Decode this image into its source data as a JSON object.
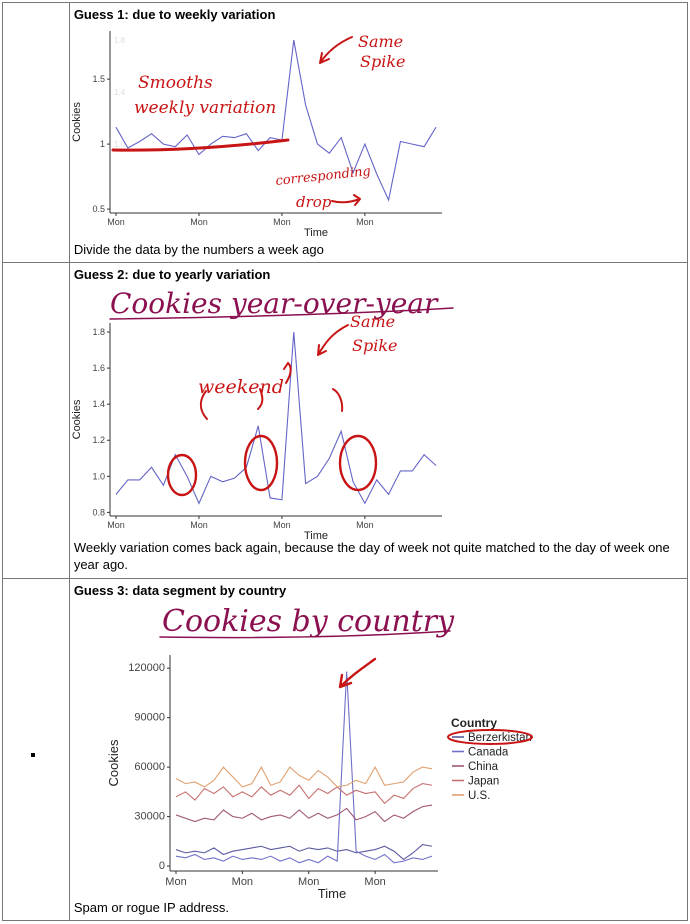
{
  "rows": [
    {
      "title": "Guess 1: due to weekly variation",
      "caption": "Divide the data by the numbers a week ago",
      "chart": {
        "type": "line",
        "xlabel": "Time",
        "ylabel": "Cookies",
        "x_ticks": [
          "Mon",
          "Mon",
          "Mon",
          "Mon"
        ],
        "y_ticks": [
          0.5,
          1.0,
          1.5
        ],
        "faded_y_ticks": [
          1.8,
          1.4,
          1.0
        ],
        "values": [
          1.13,
          0.97,
          1.02,
          1.08,
          1.0,
          0.98,
          1.07,
          0.92,
          1.0,
          1.06,
          1.05,
          1.08,
          0.95,
          1.05,
          1.03,
          1.8,
          1.3,
          1.0,
          0.93,
          1.05,
          0.78,
          1.0,
          0.77,
          0.57,
          1.02,
          1.0,
          0.98,
          1.13
        ],
        "ylim": [
          0.47,
          1.87
        ],
        "line_color": "#6464c8"
      },
      "annotations": {
        "smooths": "Smooths",
        "weekly_variation": "weekly variation",
        "same": "Same",
        "spike": "Spike",
        "corresponding": "corresponding",
        "drop": "drop"
      }
    },
    {
      "title": "Guess 2: due to yearly variation",
      "caption": "Weekly variation comes back again, because the day of week not quite matched to the day of week one year ago.",
      "heading": "Cookies year-over-year",
      "chart": {
        "type": "line",
        "xlabel": "Time",
        "ylabel": "Cookies",
        "x_ticks": [
          "Mon",
          "Mon",
          "Mon",
          "Mon"
        ],
        "y_ticks": [
          0.8,
          1.0,
          1.2,
          1.4,
          1.6,
          1.8
        ],
        "values": [
          0.9,
          0.98,
          0.98,
          1.05,
          0.95,
          1.12,
          1.0,
          0.85,
          1.0,
          0.97,
          0.99,
          1.05,
          1.28,
          0.88,
          0.87,
          1.8,
          0.96,
          1.0,
          1.1,
          1.25,
          0.97,
          0.85,
          0.98,
          0.9,
          1.03,
          1.03,
          1.12,
          1.06
        ],
        "ylim": [
          0.78,
          1.85
        ],
        "line_color": "#6464c8"
      },
      "annotations": {
        "weekend": "weekend",
        "same": "Same",
        "spike": "Spike"
      }
    },
    {
      "title": "Guess 3: data segment by country",
      "caption": "Spam or rogue IP address.",
      "heading": "Cookies by country",
      "chart": {
        "type": "line",
        "xlabel": "Time",
        "ylabel": "Cookies",
        "x_ticks": [
          "Mon",
          "Mon",
          "Mon",
          "Mon"
        ],
        "y_ticks": [
          0,
          30000,
          60000,
          90000,
          120000
        ],
        "ylim": [
          -3000,
          128000
        ],
        "legend_title": "Country",
        "legend_position": "right",
        "series": [
          {
            "name": "Berzerkistan",
            "color": "#5a5aa0",
            "values": [
              10000,
              8000,
              9000,
              8000,
              11000,
              7000,
              9000,
              10000,
              11000,
              12000,
              10000,
              11000,
              12000,
              9000,
              11000,
              10000,
              11000,
              9000,
              10000,
              8000,
              9000,
              10000,
              12000,
              9000,
              4000,
              8000,
              13000,
              12000
            ]
          },
          {
            "name": "Canada",
            "color": "#7070c8",
            "values": [
              6000,
              5000,
              7000,
              4000,
              5000,
              3000,
              6000,
              4000,
              5000,
              4000,
              6000,
              3000,
              5000,
              2000,
              4000,
              2000,
              6000,
              3000,
              118000,
              9000,
              6000,
              4000,
              7000,
              2000,
              3000,
              5000,
              4000,
              6000
            ]
          },
          {
            "name": "China",
            "color": "#a05878",
            "values": [
              31000,
              29000,
              27000,
              29000,
              28000,
              34000,
              30000,
              29000,
              32000,
              28000,
              30000,
              31000,
              29000,
              34000,
              29000,
              32000,
              29000,
              31000,
              35000,
              28000,
              30000,
              33000,
              27000,
              31000,
              29000,
              33000,
              36000,
              37000
            ]
          },
          {
            "name": "Japan",
            "color": "#c87070",
            "values": [
              42000,
              45000,
              40000,
              47000,
              44000,
              48000,
              42000,
              45000,
              42000,
              48000,
              43000,
              46000,
              43000,
              49000,
              41000,
              47000,
              44000,
              48000,
              43000,
              46000,
              44000,
              45000,
              38000,
              43000,
              41000,
              47000,
              50000,
              49000
            ]
          },
          {
            "name": "U.S.",
            "color": "#e0a070",
            "values": [
              53000,
              50000,
              51000,
              48000,
              52000,
              60000,
              54000,
              48000,
              50000,
              60000,
              49000,
              51000,
              60000,
              55000,
              52000,
              58000,
              54000,
              48000,
              49000,
              52000,
              50000,
              60000,
              49000,
              50000,
              51000,
              57000,
              60000,
              59000
            ]
          }
        ]
      }
    }
  ]
}
